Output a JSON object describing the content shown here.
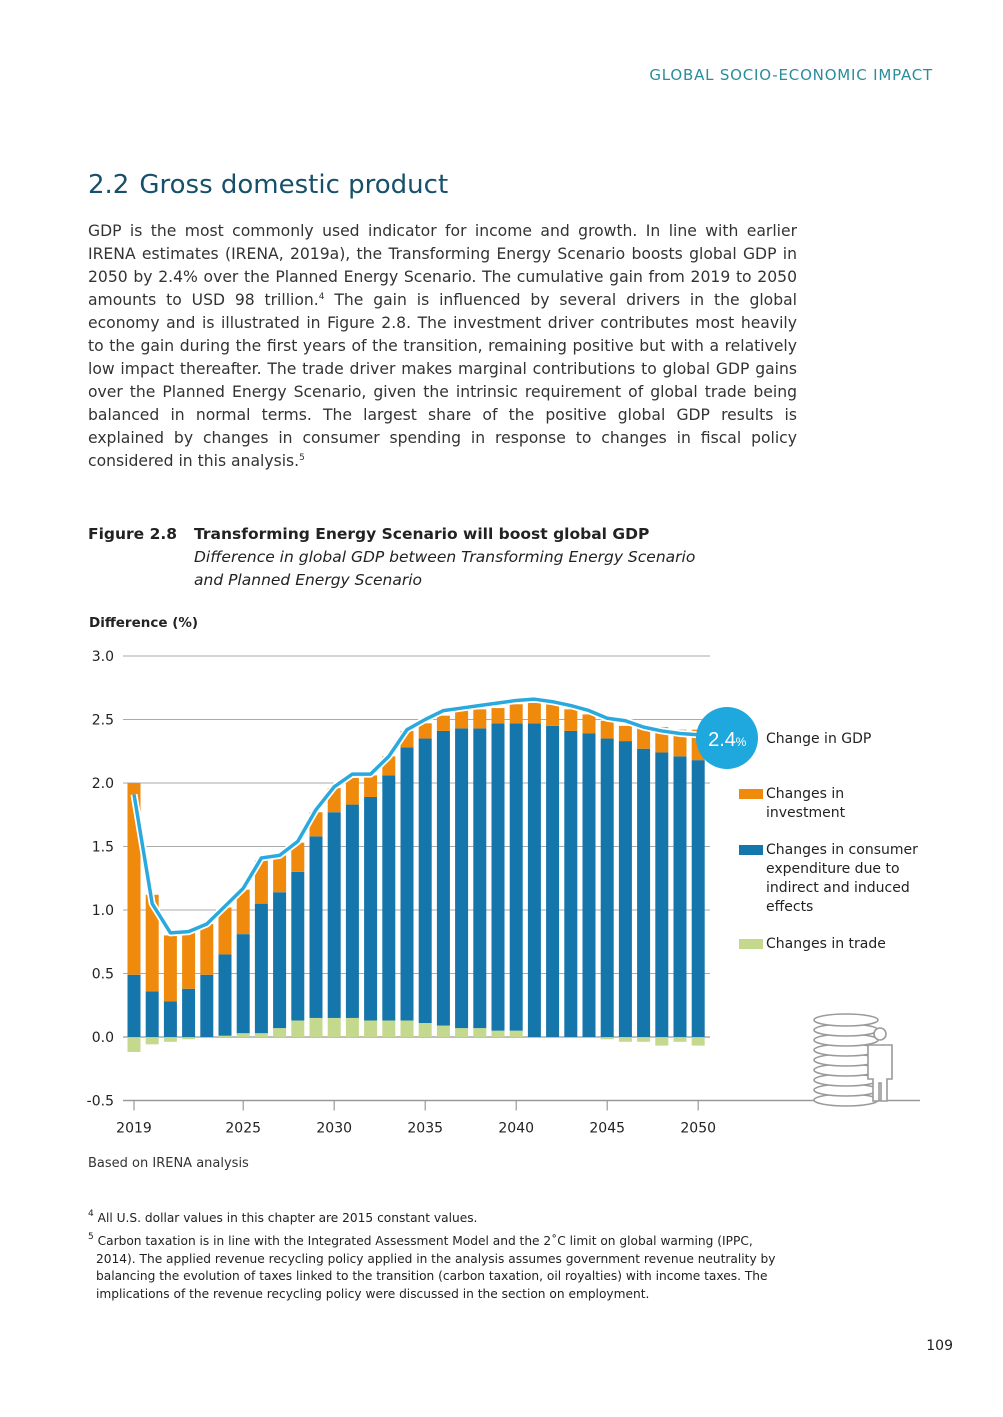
{
  "running_head": "GLOBAL SOCIO-ECONOMIC IMPACT",
  "section": {
    "number": "2.2",
    "title": "Gross domestic product"
  },
  "body": {
    "part1": "GDP is the most commonly used indicator for income and growth. In line with earlier IRENA estimates (IRENA, 2019a), the Transforming Energy Scenario boosts global GDP in 2050 by 2.4% over the Planned Energy Scenario. The cumulative gain from 2019 to 2050 amounts to USD 98 trillion.",
    "ref1": "4",
    "part2": " The gain is influenced by several drivers in the global economy and is illustrated in Figure 2.8. The investment driver contributes most heavily to the gain during the first years of the transition, remaining positive but with a relatively low impact thereafter. The trade driver makes marginal contributions to global GDP gains over the Planned Energy Scenario, given the intrinsic requirement of global trade being balanced in normal terms. The largest share of the positive global GDP results is explained by changes in consumer spending in response to changes in fiscal policy considered in this analysis.",
    "ref2": "5"
  },
  "figure": {
    "label": "Figure 2.8",
    "title": "Transforming Energy Scenario will boost global GDP",
    "subtitle_line1": "Difference in global GDP between Transforming Energy Scenario",
    "subtitle_line2": "and Planned Energy Scenario",
    "source": "Based on IRENA analysis"
  },
  "chart_data": {
    "type": "bar",
    "stacked": true,
    "ylabel": "Difference (%)",
    "ylim": [
      -0.5,
      3.0
    ],
    "yticks": [
      "3.0",
      "2.5",
      "2.0",
      "1.5",
      "1.0",
      "0.5",
      "0.0",
      "-0.5"
    ],
    "xticks": [
      "2019",
      "2025",
      "2030",
      "2035",
      "2040",
      "2045",
      "2050"
    ],
    "grid": true,
    "legend_position": "right",
    "x": [
      2019,
      2020,
      2021,
      2022,
      2023,
      2024,
      2025,
      2026,
      2027,
      2028,
      2029,
      2030,
      2031,
      2032,
      2033,
      2034,
      2035,
      2036,
      2037,
      2038,
      2039,
      2040,
      2041,
      2042,
      2043,
      2044,
      2045,
      2046,
      2047,
      2048,
      2049,
      2050
    ],
    "series": [
      {
        "name": "Changes in trade",
        "color": "#c5d98e",
        "values": [
          -0.11,
          -0.05,
          -0.03,
          -0.01,
          0,
          0.01,
          0.03,
          0.03,
          0.07,
          0.13,
          0.15,
          0.15,
          0.15,
          0.13,
          0.13,
          0.13,
          0.11,
          0.09,
          0.07,
          0.07,
          0.05,
          0.05,
          0,
          0,
          0,
          0,
          -0.01,
          -0.03,
          -0.03,
          -0.06,
          -0.03,
          -0.06
        ]
      },
      {
        "name": "Changes in consumer expenditure due to indirect and induced effects",
        "color": "#1576ab",
        "values": [
          0.49,
          0.36,
          0.28,
          0.38,
          0.49,
          0.64,
          0.78,
          1.02,
          1.07,
          1.17,
          1.43,
          1.62,
          1.68,
          1.76,
          1.93,
          2.15,
          2.24,
          2.32,
          2.36,
          2.36,
          2.42,
          2.42,
          2.47,
          2.45,
          2.41,
          2.39,
          2.35,
          2.33,
          2.27,
          2.24,
          2.21,
          2.18
        ]
      },
      {
        "name": "Changes in investment",
        "color": "#f08a0c",
        "values": [
          1.51,
          0.76,
          0.52,
          0.45,
          0.4,
          0.37,
          0.35,
          0.34,
          0.29,
          0.23,
          0.19,
          0.19,
          0.21,
          0.17,
          0.15,
          0.13,
          0.12,
          0.12,
          0.14,
          0.15,
          0.12,
          0.15,
          0.16,
          0.17,
          0.17,
          0.15,
          0.14,
          0.12,
          0.17,
          0.2,
          0.21,
          0.24
        ]
      },
      {
        "name": "Change in GDP",
        "type": "line",
        "color": "#29a9dd",
        "values": [
          1.91,
          1.05,
          0.82,
          0.83,
          0.89,
          1.03,
          1.17,
          1.41,
          1.43,
          1.54,
          1.79,
          1.97,
          2.07,
          2.07,
          2.21,
          2.42,
          2.5,
          2.57,
          2.59,
          2.61,
          2.63,
          2.65,
          2.66,
          2.64,
          2.61,
          2.57,
          2.51,
          2.49,
          2.44,
          2.41,
          2.39,
          2.38
        ]
      }
    ],
    "annotation": {
      "value": "2.4",
      "unit": "%"
    },
    "legend": {
      "gdp": "Change in GDP",
      "investment_1": "Changes in",
      "investment_2": "investment",
      "consumer_1": "Changes in consumer",
      "consumer_2": "expenditure due to",
      "consumer_3": "indirect and induced",
      "consumer_4": "effects",
      "trade": "Changes in trade"
    },
    "icons": [
      "coin-stack-icon",
      "person-icon"
    ]
  },
  "footnotes": [
    {
      "mark": "4",
      "text": "All U.S. dollar values in this chapter are 2015 constant values."
    },
    {
      "mark": "5",
      "line1": "Carbon taxation is in line with the Integrated Assessment Model and the 2˚C limit on global warming (IPPC,",
      "rest": "2014). The applied revenue recycling policy applied in the analysis assumes government revenue neutrality by balancing the evolution of taxes linked to the transition (carbon taxation, oil royalties) with income taxes. The implications of the revenue recycling policy were discussed in the section on employment."
    }
  ],
  "page_number": "109"
}
